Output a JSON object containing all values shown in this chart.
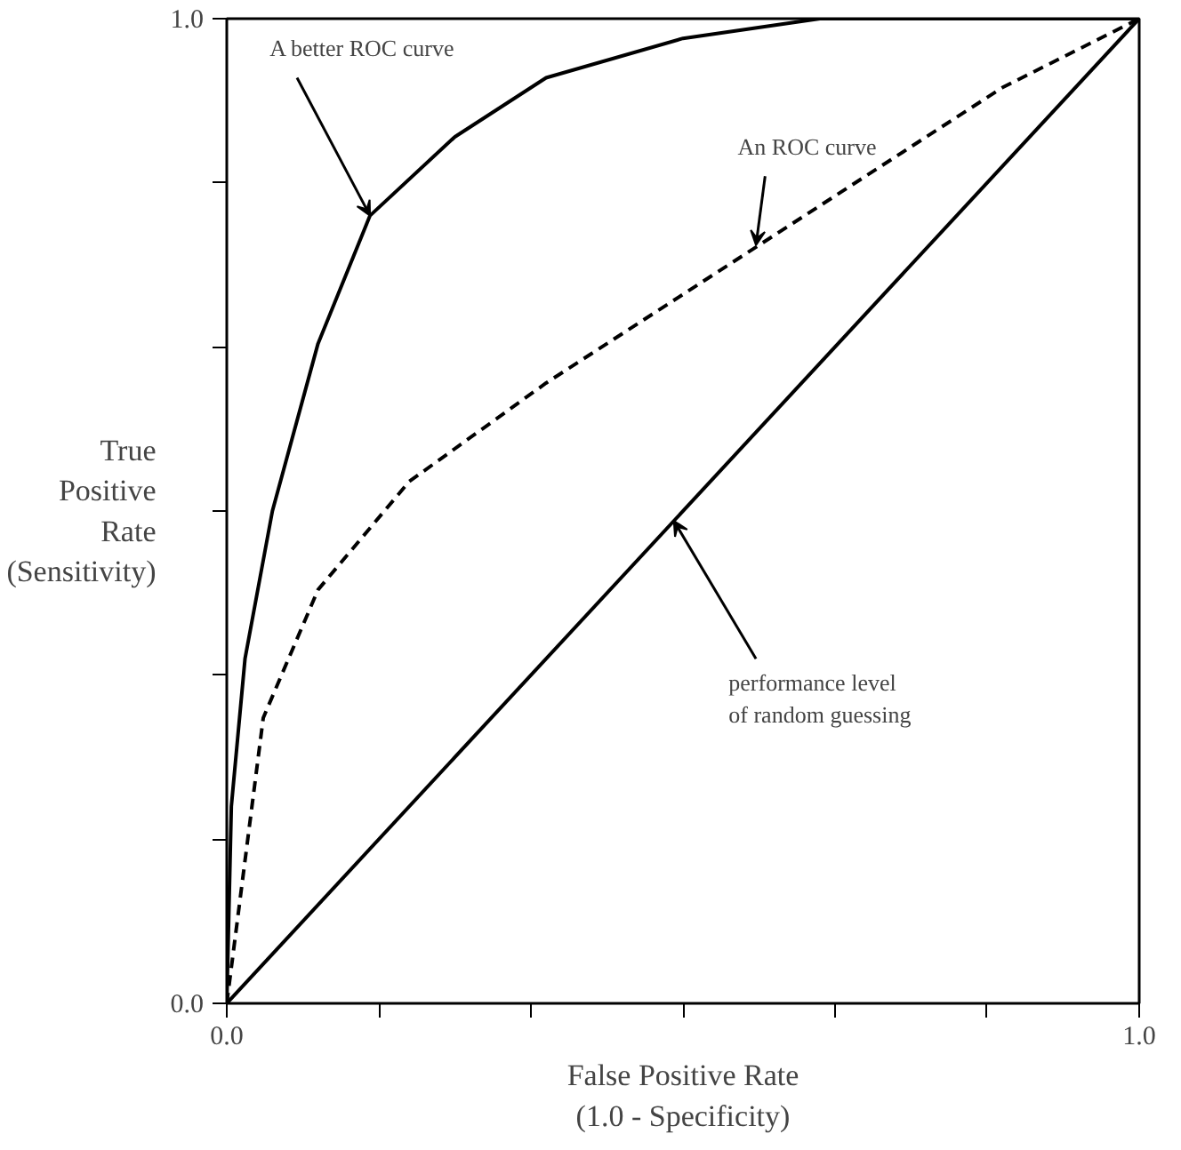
{
  "chart_data": {
    "type": "line",
    "xlabel": "False Positive Rate\n(1.0 - Specificity)",
    "ylabel": "True\nPositive\nRate\n(Sensitivity)",
    "xlim": [
      0,
      1
    ],
    "ylim": [
      0,
      1
    ],
    "xticks": [
      {
        "value": 0,
        "label": "0.0"
      },
      {
        "value": 0.1667,
        "label": null
      },
      {
        "value": 0.3333,
        "label": null
      },
      {
        "value": 0.5,
        "label": null
      },
      {
        "value": 0.6667,
        "label": null
      },
      {
        "value": 0.8333,
        "label": null
      },
      {
        "value": 1,
        "label": "1.0"
      }
    ],
    "yticks": [
      {
        "value": 0,
        "label": "0.0"
      },
      {
        "value": 0.1667,
        "label": null
      },
      {
        "value": 0.3333,
        "label": null
      },
      {
        "value": 0.5,
        "label": null
      },
      {
        "value": 0.6667,
        "label": null
      },
      {
        "value": 0.8333,
        "label": null
      },
      {
        "value": 1,
        "label": "1.0"
      }
    ],
    "grid": false,
    "marker": "none",
    "series": [
      {
        "color": "#000000",
        "line_style": "solid",
        "x": [
          0,
          0.005,
          0.02,
          0.05,
          0.1,
          0.157,
          0.25,
          0.35,
          0.5,
          0.65,
          1
        ],
        "values": [
          0,
          0.2,
          0.35,
          0.5,
          0.67,
          0.8,
          0.88,
          0.94,
          0.98,
          1,
          1
        ]
      },
      {
        "color": "#000000",
        "line_style": "dashed",
        "x": [
          0,
          0.04,
          0.1,
          0.2,
          0.35,
          0.5,
          0.7,
          0.85,
          1
        ],
        "values": [
          0,
          0.29,
          0.42,
          0.53,
          0.63,
          0.72,
          0.84,
          0.93,
          1
        ]
      },
      {
        "color": "#000000",
        "line_style": "solid",
        "x": [
          0,
          1
        ],
        "values": [
          0,
          1
        ]
      }
    ],
    "annotations": [
      {
        "text": "A better ROC curve",
        "x": 0.157,
        "y": 0.8
      },
      {
        "text": "An ROC curve",
        "x": 0.58,
        "y": 0.77
      },
      {
        "text": "performance level\nof random guessing",
        "x": 0.49,
        "y": 0.49
      }
    ]
  }
}
